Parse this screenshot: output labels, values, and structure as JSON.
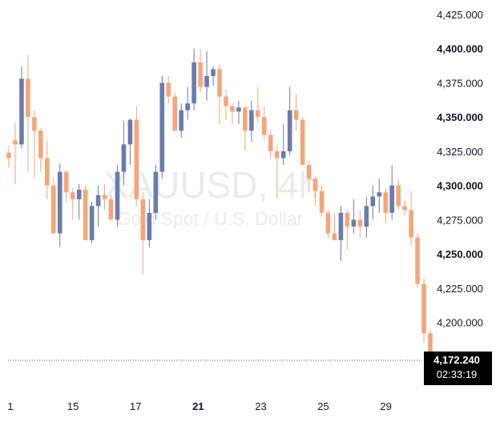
{
  "symbol": {
    "ticker": "XAUUSD",
    "interval": "4h",
    "description": "Gold Spot / U.S. Dollar"
  },
  "colors": {
    "up": "#6b7bab",
    "down": "#f5a57a",
    "background": "#ffffff",
    "label_bg": "#000000",
    "watermark": "#e9ebef",
    "text": "#131722"
  },
  "price_label": {
    "value": "4,172.240",
    "countdown": "02:33:19"
  },
  "chart_data": {
    "type": "candlestick",
    "y_axis": {
      "range": [
        4160,
        4430
      ],
      "ticks": [
        "4,425.000",
        "4,400.000",
        "4,375.000",
        "4,350.000",
        "4,325.000",
        "4,300.000",
        "4,275.000",
        "4,250.000",
        "4,225.000",
        "4,200.000"
      ],
      "tick_values": [
        4425,
        4400,
        4375,
        4350,
        4325,
        4300,
        4275,
        4250,
        4225,
        4200
      ],
      "bold_ticks": [
        "4,400.000",
        "4,350.000",
        "4,300.000",
        "4,250.000"
      ]
    },
    "x_axis": {
      "labels": [
        "1",
        "15",
        "17",
        "21",
        "23",
        "25",
        "29"
      ],
      "bold_labels": [
        "21"
      ],
      "label_bar_index": [
        0,
        9.8,
        19.6,
        29.4,
        39.2,
        49,
        58.8
      ]
    },
    "last_price": 4172.24,
    "candles": [
      [
        4324,
        4329,
        4313,
        4320
      ],
      [
        4333,
        4346,
        4301,
        4330
      ],
      [
        4330,
        4387,
        4327,
        4378
      ],
      [
        4378,
        4395,
        4310,
        4350
      ],
      [
        4350,
        4355,
        4305,
        4340
      ],
      [
        4340,
        4342,
        4310,
        4320
      ],
      [
        4320,
        4333,
        4290,
        4300
      ],
      [
        4300,
        4305,
        4265,
        4265
      ],
      [
        4265,
        4316,
        4255,
        4310
      ],
      [
        4310,
        4311,
        4288,
        4295
      ],
      [
        4295,
        4298,
        4275,
        4290
      ],
      [
        4290,
        4301,
        4275,
        4297
      ],
      [
        4297,
        4300,
        4260,
        4260
      ],
      [
        4260,
        4288,
        4258,
        4285
      ],
      [
        4285,
        4300,
        4270,
        4293
      ],
      [
        4293,
        4301,
        4282,
        4290
      ],
      [
        4290,
        4293,
        4275,
        4275
      ],
      [
        4275,
        4315,
        4270,
        4310
      ],
      [
        4310,
        4347,
        4300,
        4330
      ],
      [
        4330,
        4349,
        4315,
        4348
      ],
      [
        4348,
        4358,
        4285,
        4290
      ],
      [
        4290,
        4295,
        4235,
        4260
      ],
      [
        4260,
        4290,
        4255,
        4280
      ],
      [
        4280,
        4315,
        4275,
        4310
      ],
      [
        4310,
        4380,
        4305,
        4375
      ],
      [
        4375,
        4380,
        4360,
        4365
      ],
      [
        4365,
        4368,
        4340,
        4340
      ],
      [
        4340,
        4360,
        4335,
        4355
      ],
      [
        4355,
        4372,
        4348,
        4360
      ],
      [
        4360,
        4400,
        4355,
        4390
      ],
      [
        4390,
        4400,
        4368,
        4372
      ],
      [
        4372,
        4398,
        4362,
        4380
      ],
      [
        4380,
        4387,
        4373,
        4385
      ],
      [
        4385,
        4388,
        4345,
        4365
      ],
      [
        4365,
        4370,
        4348,
        4358
      ],
      [
        4358,
        4360,
        4345,
        4354
      ],
      [
        4354,
        4362,
        4345,
        4357
      ],
      [
        4357,
        4358,
        4325,
        4340
      ],
      [
        4340,
        4362,
        4332,
        4355
      ],
      [
        4355,
        4372,
        4345,
        4350
      ],
      [
        4350,
        4358,
        4333,
        4337
      ],
      [
        4337,
        4340,
        4320,
        4325
      ],
      [
        4325,
        4330,
        4290,
        4320
      ],
      [
        4320,
        4345,
        4315,
        4325
      ],
      [
        4325,
        4372,
        4322,
        4355
      ],
      [
        4355,
        4367,
        4340,
        4348
      ],
      [
        4348,
        4350,
        4315,
        4315
      ],
      [
        4315,
        4318,
        4295,
        4305
      ],
      [
        4305,
        4307,
        4285,
        4296
      ],
      [
        4296,
        4300,
        4277,
        4280
      ],
      [
        4280,
        4282,
        4262,
        4265
      ],
      [
        4265,
        4280,
        4260,
        4260
      ],
      [
        4260,
        4285,
        4245,
        4280
      ],
      [
        4280,
        4282,
        4253,
        4270
      ],
      [
        4270,
        4290,
        4265,
        4275
      ],
      [
        4275,
        4282,
        4262,
        4270
      ],
      [
        4270,
        4292,
        4262,
        4285
      ],
      [
        4285,
        4300,
        4275,
        4292
      ],
      [
        4292,
        4305,
        4280,
        4295
      ],
      [
        4295,
        4298,
        4272,
        4280
      ],
      [
        4280,
        4315,
        4275,
        4300
      ],
      [
        4300,
        4305,
        4282,
        4285
      ],
      [
        4285,
        4290,
        4278,
        4282
      ],
      [
        4282,
        4296,
        4256,
        4262
      ],
      [
        4262,
        4265,
        4225,
        4228
      ],
      [
        4228,
        4232,
        4185,
        4192
      ],
      [
        4192,
        4195,
        4170,
        4172
      ]
    ]
  }
}
